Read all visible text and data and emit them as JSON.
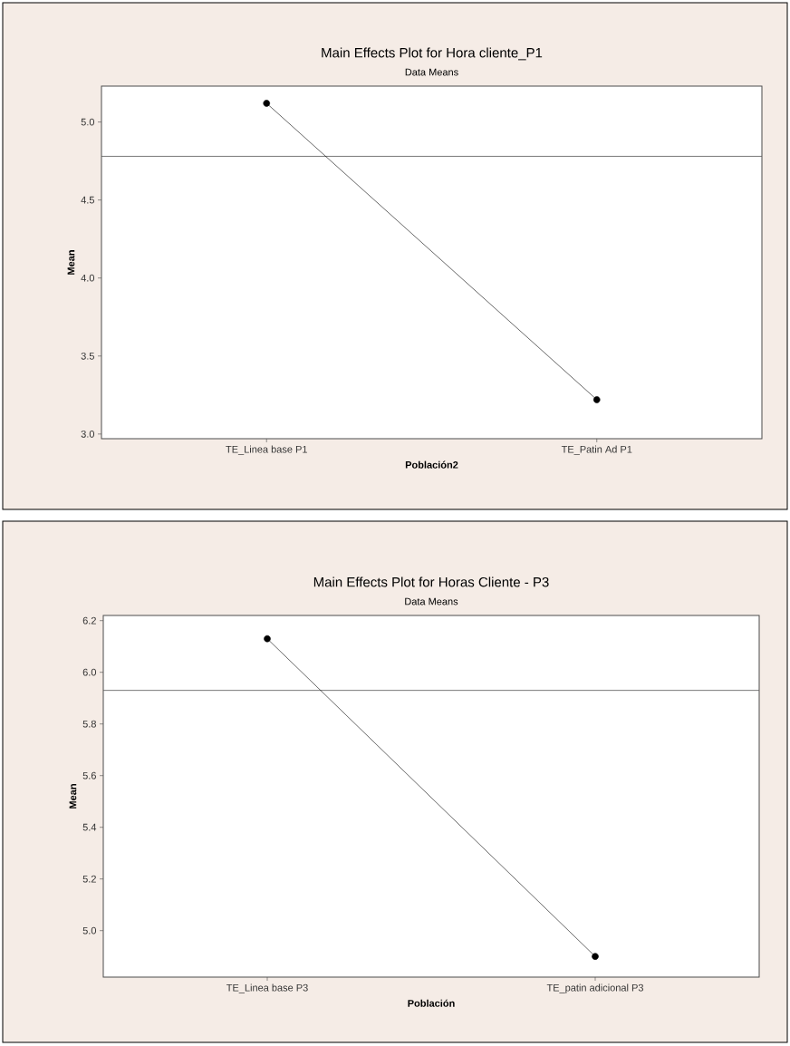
{
  "chart_data": [
    {
      "type": "line",
      "title": "Main Effects Plot for Hora cliente_P1",
      "subtitle": "Data Means",
      "xlabel": "Población2",
      "ylabel": "Mean",
      "categories": [
        "TE_Linea base P1",
        "TE_Patin Ad P1"
      ],
      "values": [
        5.12,
        3.22
      ],
      "color": "#000000",
      "marker": "circle",
      "ylim": [
        2.97,
        5.23
      ],
      "yticks": [
        {
          "value": 3.0,
          "label": "3.0"
        },
        {
          "value": 3.5,
          "label": "3.5"
        },
        {
          "value": 4.0,
          "label": "4.0"
        },
        {
          "value": 4.5,
          "label": "4.5"
        },
        {
          "value": 5.0,
          "label": "5.0"
        }
      ],
      "ref_lines": [
        {
          "axis": "y",
          "value": 4.78,
          "color": "#555555"
        }
      ]
    },
    {
      "type": "line",
      "title": "Main Effects Plot for Horas Cliente -  P3",
      "subtitle": "Data Means",
      "xlabel": "Población",
      "ylabel": "Mean",
      "categories": [
        "TE_Linea base P3",
        "TE_patin adicional P3"
      ],
      "values": [
        6.13,
        4.9
      ],
      "color": "#000000",
      "marker": "circle",
      "ylim": [
        4.82,
        6.22
      ],
      "yticks": [
        {
          "value": 5.0,
          "label": "5.0"
        },
        {
          "value": 5.2,
          "label": "5.2"
        },
        {
          "value": 5.4,
          "label": "5.4"
        },
        {
          "value": 5.6,
          "label": "5.6"
        },
        {
          "value": 5.8,
          "label": "5.8"
        },
        {
          "value": 6.0,
          "label": "6.0"
        },
        {
          "value": 6.2,
          "label": "6.2"
        }
      ],
      "ref_lines": [
        {
          "axis": "y",
          "value": 5.93,
          "color": "#555555"
        }
      ]
    }
  ]
}
